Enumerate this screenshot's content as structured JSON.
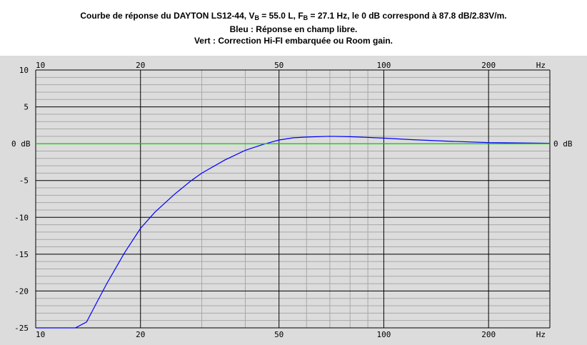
{
  "title": {
    "line1_prefix": "Courbe de réponse du DAYTON LS12-44, V",
    "line1_vb_sub": "B",
    "line1_vb_value": " = 55.0 L, F",
    "line1_fb_sub": "B",
    "line1_rest": " = 27.1 Hz, le 0 dB correspond à 87.8 dB/2.83V/m.",
    "line2": "Bleu : Réponse en champ libre.",
    "line3": "Vert : Correction Hi-FI embarquée ou Room gain."
  },
  "chart_data": {
    "type": "line",
    "x_scale": "log",
    "xlim": [
      10,
      300
    ],
    "ylim": [
      -25,
      10
    ],
    "x_ticks": [
      {
        "value": 10,
        "label": "10"
      },
      {
        "value": 20,
        "label": "20"
      },
      {
        "value": 50,
        "label": "50"
      },
      {
        "value": 100,
        "label": "100"
      },
      {
        "value": 200,
        "label": "200"
      }
    ],
    "x_unit_label": "Hz",
    "y_ticks_left": [
      {
        "value": 10,
        "label": "10"
      },
      {
        "value": 5,
        "label": "5"
      },
      {
        "value": 0,
        "label": "0 dB"
      },
      {
        "value": -5,
        "label": "-5"
      },
      {
        "value": -10,
        "label": "-10"
      },
      {
        "value": -15,
        "label": "-15"
      },
      {
        "value": -20,
        "label": "-20"
      },
      {
        "value": -25,
        "label": "-25"
      }
    ],
    "y_label_right": "0 dB",
    "grid": true,
    "series": [
      {
        "color": "#0000ff",
        "x": [
          10,
          13,
          14,
          15,
          16,
          18,
          20,
          22,
          25,
          28,
          30,
          35,
          40,
          45,
          50,
          55,
          60,
          70,
          80,
          90,
          100,
          120,
          150,
          200,
          250,
          300
        ],
        "y": [
          -25,
          -25,
          -24.2,
          -21.5,
          -19.0,
          -14.8,
          -11.5,
          -9.3,
          -6.9,
          -5.0,
          -4.0,
          -2.2,
          -0.9,
          -0.1,
          0.5,
          0.8,
          0.9,
          1.0,
          0.95,
          0.85,
          0.75,
          0.55,
          0.35,
          0.15,
          0.1,
          0.05
        ]
      },
      {
        "color": "#00dd00",
        "x": [
          10,
          300
        ],
        "y": [
          0,
          0
        ]
      }
    ]
  }
}
